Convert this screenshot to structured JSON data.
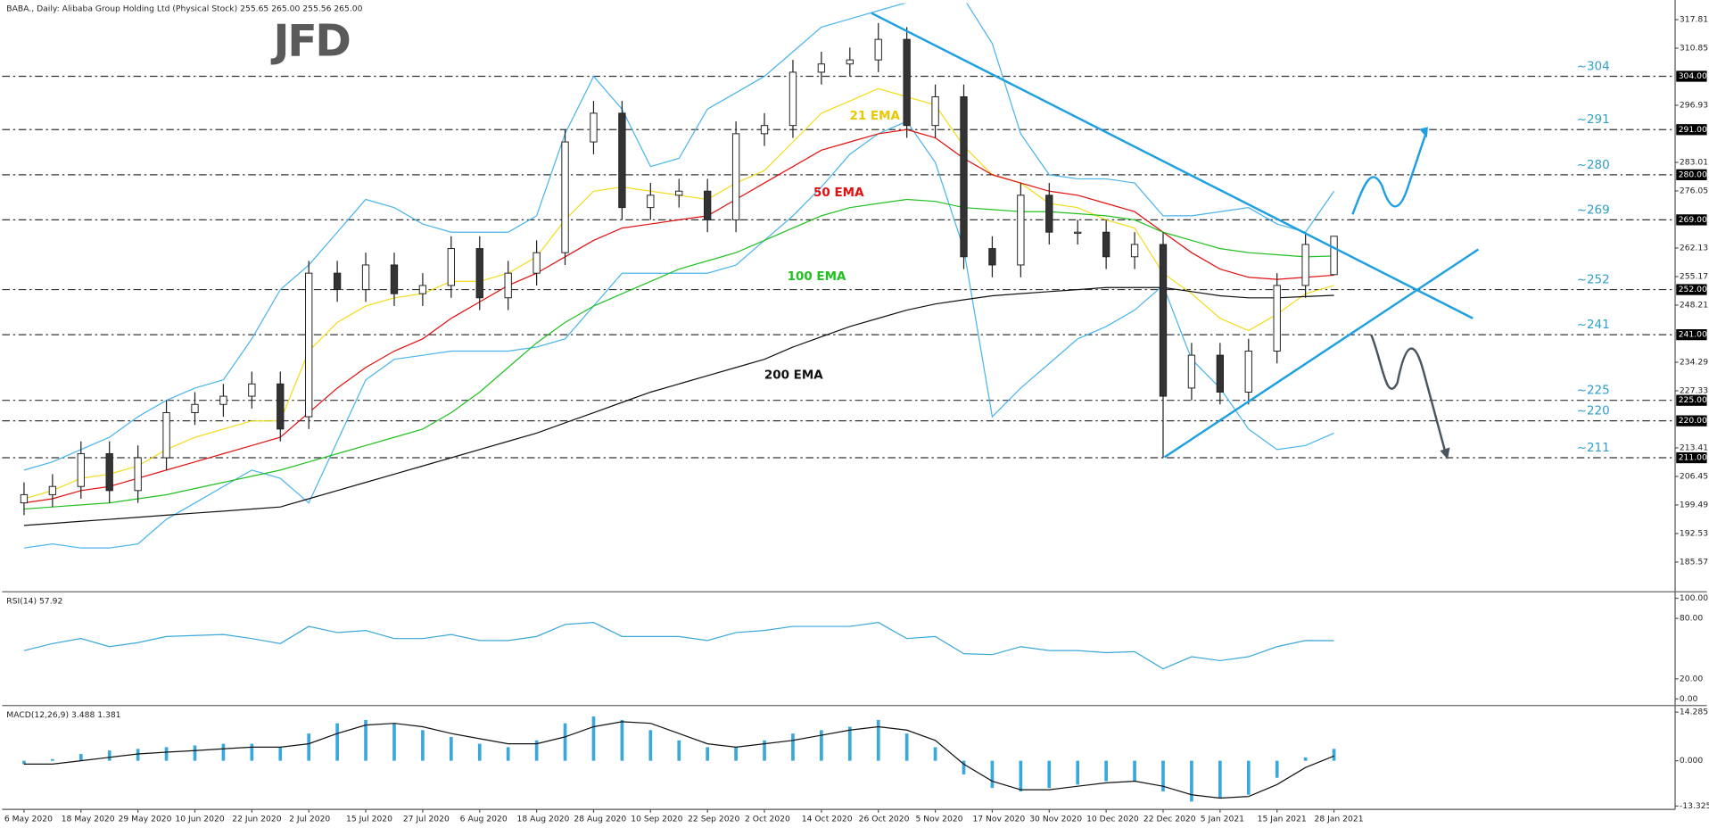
{
  "chart_data": [
    {
      "type": "candlestick",
      "title": "BABA., Daily:  Alibaba Group Holding Ltd (Physical Stock)  255.65 265.00 255.56 265.00",
      "logo": "JFD",
      "categories": [
        "6 May 2020",
        null,
        "18 May 2020",
        null,
        "29 May 2020",
        null,
        "10 Jun 2020",
        null,
        "22 Jun 2020",
        null,
        "2 Jul 2020",
        null,
        "15 Jul 2020",
        null,
        "27 Jul 2020",
        null,
        "6 Aug 2020",
        null,
        "18 Aug 2020",
        null,
        "28 Aug 2020",
        null,
        "10 Sep 2020",
        null,
        "22 Sep 2020",
        null,
        "2 Oct 2020",
        null,
        "14 Oct 2020",
        null,
        "26 Oct 2020",
        null,
        "5 Nov 2020",
        null,
        "17 Nov 2020",
        null,
        "30 Nov 2020",
        null,
        "10 Dec 2020",
        null,
        "22 Dec 2020",
        null,
        "5 Jan 2021",
        null,
        "15 Jan 2021",
        null,
        "28 Jan 2021"
      ],
      "open": [
        200,
        202,
        204,
        212,
        203,
        211,
        222,
        224,
        226,
        229,
        221,
        256,
        252,
        258,
        251,
        253,
        262,
        250,
        256,
        261,
        288,
        295,
        272,
        275,
        276,
        269,
        290,
        292,
        305,
        307,
        308,
        313,
        292,
        299,
        262,
        258,
        275,
        266,
        266,
        260,
        263,
        228,
        236,
        227,
        237,
        253,
        255.65
      ],
      "high": [
        205,
        207,
        215,
        215,
        214,
        225,
        227,
        229,
        232,
        232,
        259,
        259,
        261,
        261,
        256,
        265,
        265,
        259,
        264,
        291,
        298,
        298,
        278,
        279,
        279,
        293,
        295,
        308,
        310,
        311,
        317,
        316,
        302,
        302,
        265,
        278,
        278,
        269,
        269,
        266,
        266,
        239,
        239,
        240,
        256,
        266,
        265.0
      ],
      "low": [
        197,
        199,
        201,
        200,
        200,
        208,
        219,
        221,
        223,
        215,
        218,
        249,
        249,
        248,
        248,
        250,
        247,
        247,
        253,
        258,
        285,
        269,
        269,
        272,
        266,
        266,
        287,
        289,
        302,
        304,
        305,
        289,
        289,
        257,
        255,
        255,
        263,
        263,
        257,
        257,
        211,
        225,
        224,
        224,
        234,
        250,
        255.56
      ],
      "close": [
        202,
        204,
        212,
        203,
        211,
        222,
        224,
        226,
        229,
        218,
        256,
        252,
        258,
        251,
        253,
        262,
        250,
        256,
        261,
        288,
        295,
        272,
        275,
        276,
        269,
        290,
        292,
        305,
        307,
        308,
        313,
        292,
        299,
        260,
        258,
        275,
        266,
        266,
        260,
        263,
        226,
        236,
        227,
        237,
        253,
        263,
        265.0
      ],
      "up_color": "#ffffff",
      "down_color": "#333333",
      "series": [
        {
          "name": "21 EMA",
          "color": "#f2dc1e",
          "values": [
            201,
            203,
            206,
            207,
            209,
            213,
            216,
            218,
            220,
            220,
            237,
            244,
            248,
            250,
            251,
            254,
            254,
            256,
            260,
            269,
            276,
            277,
            276,
            275,
            274,
            278,
            281,
            288,
            295,
            298,
            301,
            299,
            297,
            287,
            280,
            278,
            273,
            272,
            269,
            267,
            256,
            251,
            245,
            242,
            246,
            251,
            253
          ]
        },
        {
          "name": "50 EMA",
          "color": "#e01010",
          "values": [
            200,
            201,
            203,
            204,
            206,
            208,
            210,
            212,
            214,
            216,
            222,
            228,
            233,
            237,
            240,
            245,
            249,
            253,
            256,
            260,
            264,
            267,
            268,
            269,
            270,
            274,
            278,
            282,
            286,
            288,
            290,
            291,
            289,
            284,
            280,
            278,
            276,
            275,
            273,
            271,
            266,
            261,
            257,
            255,
            254.5,
            255,
            255.5
          ]
        },
        {
          "name": "100 EMA",
          "color": "#22c022",
          "values": [
            198.5,
            199,
            199.5,
            200,
            201,
            202,
            203.5,
            205,
            206.5,
            208,
            210,
            212,
            214,
            216,
            218,
            222,
            227,
            233,
            239,
            244,
            248,
            251,
            254,
            257,
            259,
            261,
            264,
            267,
            270,
            272,
            273,
            274,
            273.5,
            272,
            271.5,
            271,
            271,
            270.5,
            270,
            269,
            266,
            264,
            262,
            261,
            260.5,
            260,
            260.2
          ]
        },
        {
          "name": "200 EMA",
          "color": "#111111",
          "values": [
            194.5,
            195,
            195.5,
            196,
            196.5,
            197,
            197.5,
            198,
            198.5,
            199,
            201,
            203,
            205,
            207,
            209,
            211,
            213,
            215,
            217,
            219.5,
            222,
            224.5,
            227,
            229,
            231,
            233,
            235,
            238,
            240.5,
            243,
            245,
            247,
            248.5,
            249.5,
            250.5,
            251,
            251.5,
            252,
            252.5,
            252.5,
            252.5,
            251.5,
            250.5,
            250,
            250,
            250.3,
            250.6
          ]
        }
      ],
      "bands": {
        "color": "#4ab4ec",
        "upper": [
          208,
          210,
          213,
          216,
          221,
          225,
          228,
          230,
          240,
          252,
          258,
          266,
          274,
          272,
          268,
          266,
          266,
          266,
          270,
          290,
          304,
          296,
          282,
          284,
          296,
          300,
          304,
          310,
          316,
          318,
          320,
          322,
          325,
          323,
          312,
          290,
          280,
          279,
          279,
          278,
          270,
          270,
          271,
          272,
          268,
          266,
          276
        ],
        "lower": [
          189,
          190,
          189,
          189,
          190,
          196,
          200,
          204,
          208,
          206,
          200,
          215,
          230,
          235,
          236,
          237,
          237,
          237,
          238,
          240,
          248,
          256,
          256,
          256,
          256,
          258,
          264,
          270,
          277,
          285,
          290,
          293,
          283,
          262,
          221,
          228,
          234,
          240,
          243,
          247,
          253,
          235,
          228,
          218,
          213,
          214,
          217
        ]
      },
      "levels": [
        {
          "value": 304,
          "label": "~304",
          "tag": "304.00"
        },
        {
          "value": 291,
          "label": "~291",
          "tag": "291.00"
        },
        {
          "value": 280,
          "label": "~280",
          "tag": "280.00"
        },
        {
          "value": 269,
          "label": "~269",
          "tag": "269.00"
        },
        {
          "value": 252,
          "label": "~252",
          "tag": "252.00"
        },
        {
          "value": 241,
          "label": "~241",
          "tag": "241.00"
        },
        {
          "value": 225,
          "label": "~225",
          "tag": "225.00"
        },
        {
          "value": 220,
          "label": "~220",
          "tag": "220.00"
        },
        {
          "value": 211,
          "label": "~211",
          "tag": "211.00"
        }
      ],
      "level_color": "#2f9fc8",
      "ylim": [
        178.6,
        321.8
      ],
      "yticks": [
        317.81,
        310.85,
        296.93,
        283.01,
        276.05,
        262.13,
        255.17,
        248.21,
        234.29,
        227.33,
        213.41,
        206.45,
        199.49,
        192.53,
        185.57
      ]
    },
    {
      "type": "line",
      "title": "RSI(14) 57.92",
      "color": "#3aa8d8",
      "values": [
        48,
        55,
        60,
        52,
        56,
        62,
        63,
        64,
        60,
        55,
        72,
        66,
        68,
        60,
        60,
        64,
        58,
        58,
        62,
        74,
        76,
        62,
        62,
        62,
        58,
        66,
        68,
        72,
        72,
        72,
        76,
        60,
        62,
        45,
        44,
        52,
        48,
        48,
        46,
        47,
        30,
        42,
        38,
        42,
        52,
        58,
        57.92
      ],
      "ylim": [
        -6.5,
        105.4
      ],
      "yticks": [
        {
          "value": 100,
          "label": "100.00"
        },
        {
          "value": 80,
          "label": "80.00"
        },
        {
          "value": 20,
          "label": "20.00"
        },
        {
          "value": 0,
          "label": "0.00"
        }
      ]
    },
    {
      "type": "bar",
      "title": "MACD(12,26,9) 3.488 1.381",
      "color": "#3aa8d8",
      "signal_color": "#111111",
      "values": [
        -1,
        0.5,
        2,
        3,
        3.5,
        4,
        4.5,
        5,
        5,
        4,
        8,
        11,
        12,
        11,
        9,
        7,
        5,
        4,
        6,
        11,
        13,
        12,
        9,
        6,
        4,
        4,
        6,
        8,
        9,
        10,
        12,
        8,
        4,
        -4,
        -8,
        -9,
        -8,
        -7,
        -6,
        -6,
        -9,
        -12,
        -11,
        -10,
        -5,
        1,
        3.488
      ],
      "signal_values": [
        -1,
        -1,
        0,
        1,
        2,
        2.5,
        3,
        3.5,
        4,
        4,
        5,
        8,
        10.5,
        11,
        10,
        8,
        6.5,
        5,
        5,
        7,
        10,
        11.5,
        11,
        8,
        5,
        4,
        5,
        6,
        7.5,
        9,
        10,
        9,
        6,
        -1,
        -6,
        -8.5,
        -8.5,
        -7.5,
        -6.5,
        -6,
        -7.5,
        -10,
        -11,
        -10.5,
        -7,
        -2,
        1.381
      ],
      "ylim": [
        -14.3,
        15.6
      ],
      "yticks": [
        {
          "value": 14.285,
          "label": "14.285"
        },
        {
          "value": 0,
          "label": "0.000"
        },
        {
          "value": -13.325,
          "label": "-13.325"
        }
      ]
    }
  ]
}
